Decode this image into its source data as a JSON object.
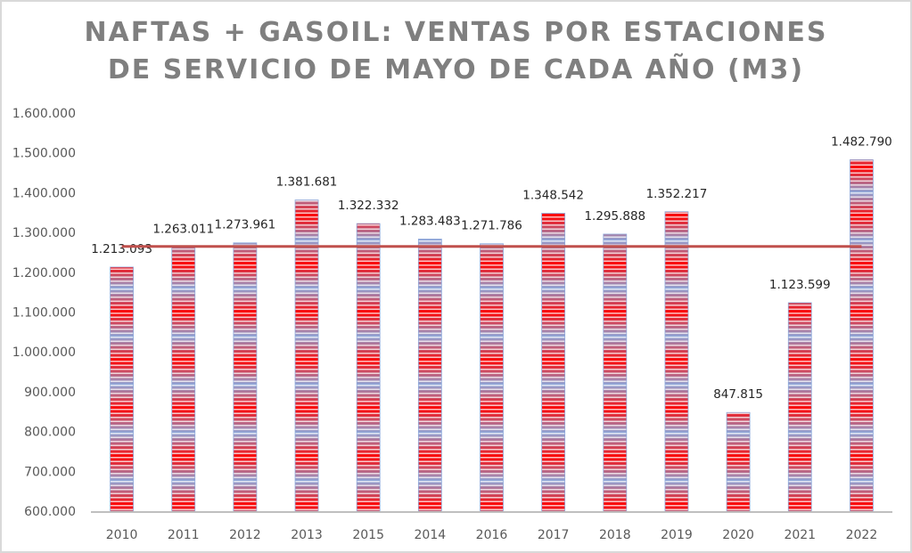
{
  "chart_data": {
    "type": "bar",
    "title": "NAFTAS + GASOIL: VENTAS POR ESTACIONES DE SERVICIO DE MAYO DE CADA AÑO (M3)",
    "title_lines": [
      "NAFTAS + GASOIL: VENTAS POR ESTACIONES",
      "DE SERVICIO DE MAYO DE CADA AÑO (M3)"
    ],
    "xlabel": "",
    "ylabel": "",
    "categories": [
      "2010",
      "2011",
      "2012",
      "2013",
      "2015",
      "2014",
      "2016",
      "2017",
      "2018",
      "2019",
      "2020",
      "2021",
      "2022"
    ],
    "values": [
      1213093,
      1263011,
      1273961,
      1381681,
      1322332,
      1283483,
      1271786,
      1348542,
      1295888,
      1352217,
      847815,
      1123599,
      1482790
    ],
    "data_labels": [
      "1.213.093",
      "1.263.011",
      "1.273.961",
      "1.381.681",
      "1.322.332",
      "1.283.483",
      "1.271.786",
      "1.348.542",
      "1.295.888",
      "1.352.217",
      "847.815",
      "1.123.599",
      "1.482.790"
    ],
    "ylim": [
      600000,
      1600000
    ],
    "yticks": [
      600000,
      700000,
      800000,
      900000,
      1000000,
      1100000,
      1200000,
      1300000,
      1400000,
      1500000,
      1600000
    ],
    "ytick_labels": [
      "600.000",
      "700.000",
      "800.000",
      "900.000",
      "1.000.000",
      "1.100.000",
      "1.200.000",
      "1.300.000",
      "1.400.000",
      "1.500.000",
      "1.600.000"
    ],
    "average_line": {
      "value": 1265000,
      "color": "#c0504d"
    },
    "grid": false,
    "legend": "none",
    "colors": {
      "bar_stripe_red": "#ff0000",
      "bar_stripe_light": "#f2dcdb",
      "bar_edge": "#8ea9db",
      "axis": "#bfbfbf",
      "title": "#7f7f7f"
    }
  }
}
